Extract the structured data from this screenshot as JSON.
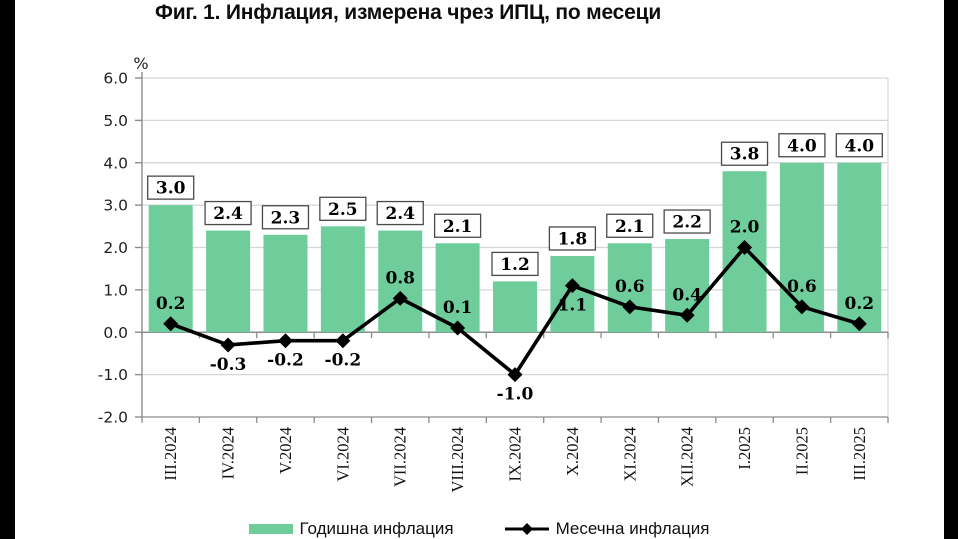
{
  "title": "Фиг. 1. Инфлация, измерена чрез ИПЦ, по месеци",
  "frame": {
    "pillarbox_color": "#000000",
    "background_color": "#ffffff"
  },
  "chart_data": {
    "type": "bar+line",
    "title": "Фиг. 1. Инфлация, измерена чрез ИПЦ, по месеци",
    "unit_label": "%",
    "categories": [
      "III.2024",
      "IV.2024",
      "V.2024",
      "VI.2024",
      "VII.2024",
      "VIII.2024",
      "IX.2024",
      "X.2024",
      "XI.2024",
      "XII.2024",
      "I.2025",
      "II.2025",
      "III.2025"
    ],
    "series": [
      {
        "name": "Годишна инфлация",
        "type": "bar",
        "color": "#6ECD9B",
        "values": [
          3.0,
          2.4,
          2.3,
          2.5,
          2.4,
          2.1,
          1.2,
          1.8,
          2.1,
          2.2,
          3.8,
          4.0,
          4.0
        ],
        "labels": [
          "3.0",
          "2.4",
          "2.3",
          "2.5",
          "2.4",
          "2.1",
          "1.2",
          "1.8",
          "2.1",
          "2.2",
          "3.8",
          "4.0",
          "4.0"
        ]
      },
      {
        "name": "Месечна инфлация",
        "type": "line",
        "color": "#000000",
        "marker": "diamond",
        "values": [
          0.2,
          -0.3,
          -0.2,
          -0.2,
          0.8,
          0.1,
          -1.0,
          1.1,
          0.6,
          0.4,
          2.0,
          0.6,
          0.2
        ],
        "labels": [
          "0.2",
          "-0.3",
          "-0.2",
          "-0.2",
          "0.8",
          "0.1",
          "-1.0",
          "1.1",
          "0.6",
          "0.4",
          "2.0",
          "0.6",
          "0.2"
        ],
        "label_positions": [
          "above",
          "below",
          "below",
          "below",
          "above",
          "above",
          "below",
          "below",
          "above",
          "above",
          "above",
          "above",
          "above"
        ]
      }
    ],
    "ylim": [
      -2.0,
      6.0
    ],
    "ytick_step": 1.0,
    "ytick_labels": [
      "6.0",
      "5.0",
      "4.0",
      "3.0",
      "2.0",
      "1.0",
      "0.0",
      "-1.0",
      "-2.0"
    ],
    "grid": true,
    "legend_position": "bottom",
    "colors": {
      "bar_fill": "#6ECD9B",
      "gridline": "#d6d6d6",
      "axis": "#8c8c8c",
      "label_box_border": "#4a4a4a",
      "label_box_fill": "#ffffff"
    }
  }
}
